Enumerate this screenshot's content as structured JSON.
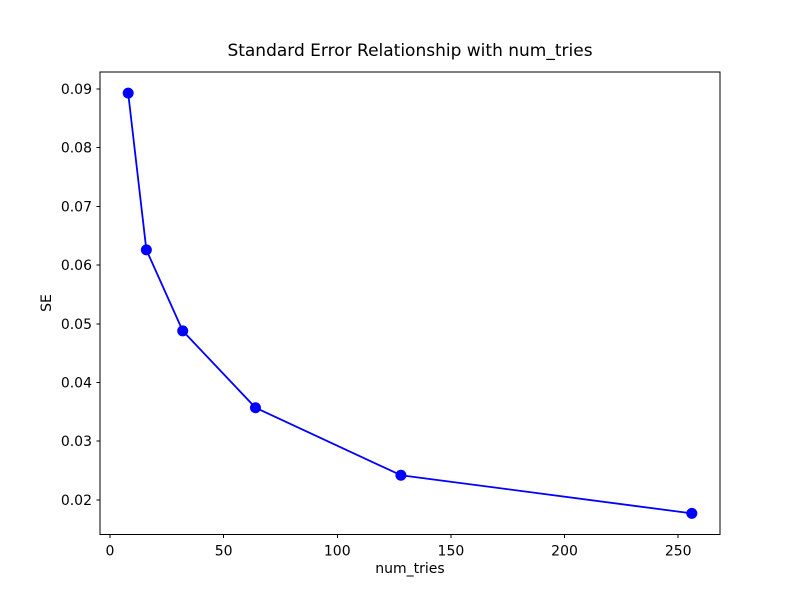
{
  "figure": {
    "background": "#ffffff"
  },
  "chart_data": {
    "type": "line",
    "title": "Standard Error Relationship with num_tries",
    "xlabel": "num_tries",
    "ylabel": "SE",
    "x": [
      8,
      16,
      32,
      64,
      128,
      256
    ],
    "y": [
      0.0893,
      0.0626,
      0.0488,
      0.0357,
      0.0242,
      0.0177
    ],
    "series": [
      {
        "name": "SE",
        "x": [
          8,
          16,
          32,
          64,
          128,
          256
        ],
        "values": [
          0.0893,
          0.0626,
          0.0488,
          0.0357,
          0.0242,
          0.0177
        ]
      }
    ],
    "x_ticks": [
      0,
      50,
      100,
      150,
      200,
      250
    ],
    "y_ticks": [
      0.02,
      0.03,
      0.04,
      0.05,
      0.06,
      0.07,
      0.08,
      0.09
    ],
    "xlim": [
      -4.4,
      268.4
    ],
    "ylim": [
      0.0141,
      0.0929
    ],
    "grid": false,
    "legend": null,
    "line_color": "#0000ff",
    "marker": "circle",
    "marker_radius_px": 5.5,
    "spine_color": "#000000",
    "tick_color": "#000000"
  }
}
